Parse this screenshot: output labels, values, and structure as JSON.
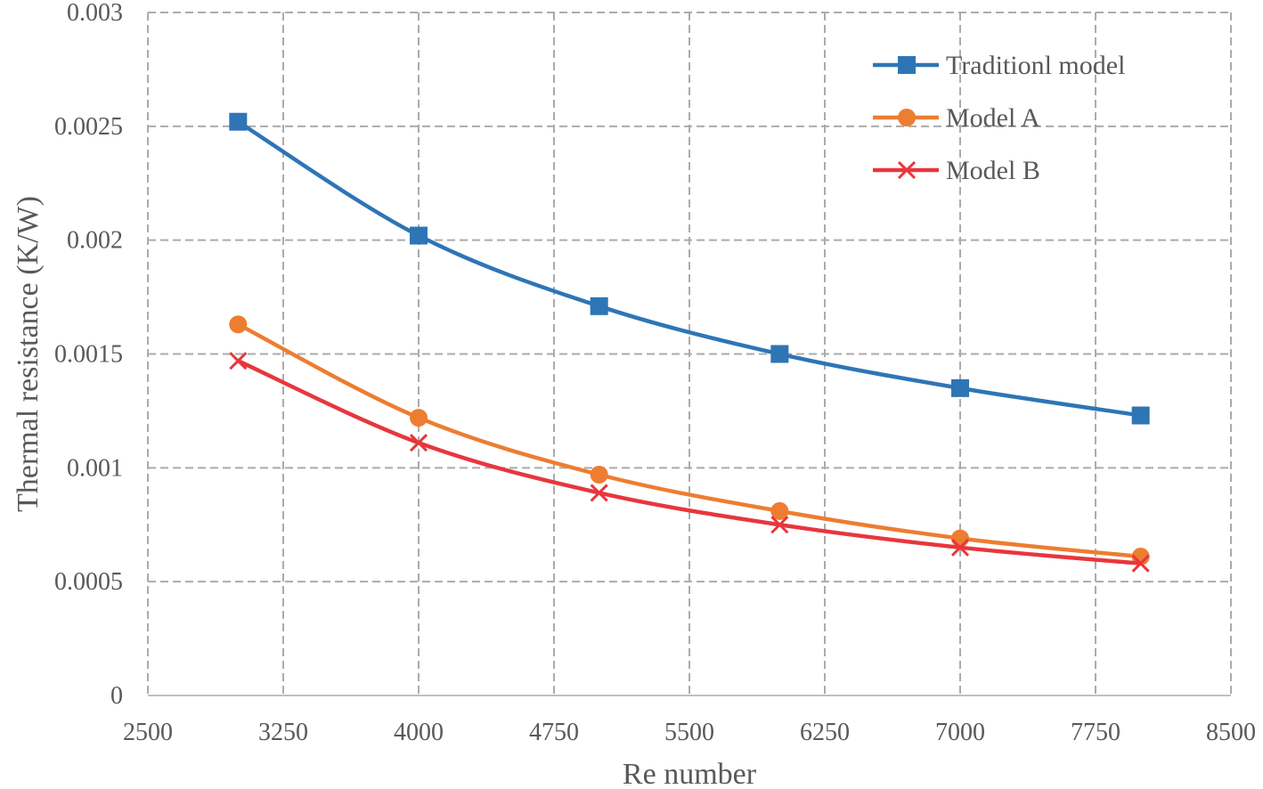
{
  "chart_data": {
    "type": "line",
    "title": "",
    "xlabel": "Re number",
    "ylabel": "Thermal resistance (K/W)",
    "xlim": [
      2500,
      8500
    ],
    "ylim": [
      0,
      0.003
    ],
    "x_ticks": [
      2500,
      3250,
      4000,
      4750,
      5500,
      6250,
      7000,
      7750,
      8500
    ],
    "x_tick_labels": [
      "2500",
      "3250",
      "4000",
      "4750",
      "5500",
      "6250",
      "7000",
      "7750",
      "8500"
    ],
    "y_ticks": [
      0,
      0.0005,
      0.001,
      0.0015,
      0.002,
      0.0025,
      0.003
    ],
    "y_tick_labels": [
      "0",
      "0.0005",
      "0.001",
      "0.0015",
      "0.002",
      "0.0025",
      "0.003"
    ],
    "grid": true,
    "smooth": true,
    "legend_position": "top-right",
    "x": [
      3000,
      4000,
      5000,
      6000,
      7000,
      8000
    ],
    "series": [
      {
        "name": "Traditionl model",
        "color": "#2E75B6",
        "marker": "square",
        "values": [
          0.00252,
          0.00202,
          0.00171,
          0.0015,
          0.00135,
          0.00123
        ]
      },
      {
        "name": "Model A",
        "color": "#ED7D31",
        "marker": "circle",
        "values": [
          0.00163,
          0.00122,
          0.00097,
          0.00081,
          0.00069,
          0.00061
        ]
      },
      {
        "name": "Model B",
        "color": "#E8363D",
        "marker": "x",
        "values": [
          0.00147,
          0.00111,
          0.00089,
          0.00075,
          0.00065,
          0.00058
        ]
      }
    ]
  }
}
